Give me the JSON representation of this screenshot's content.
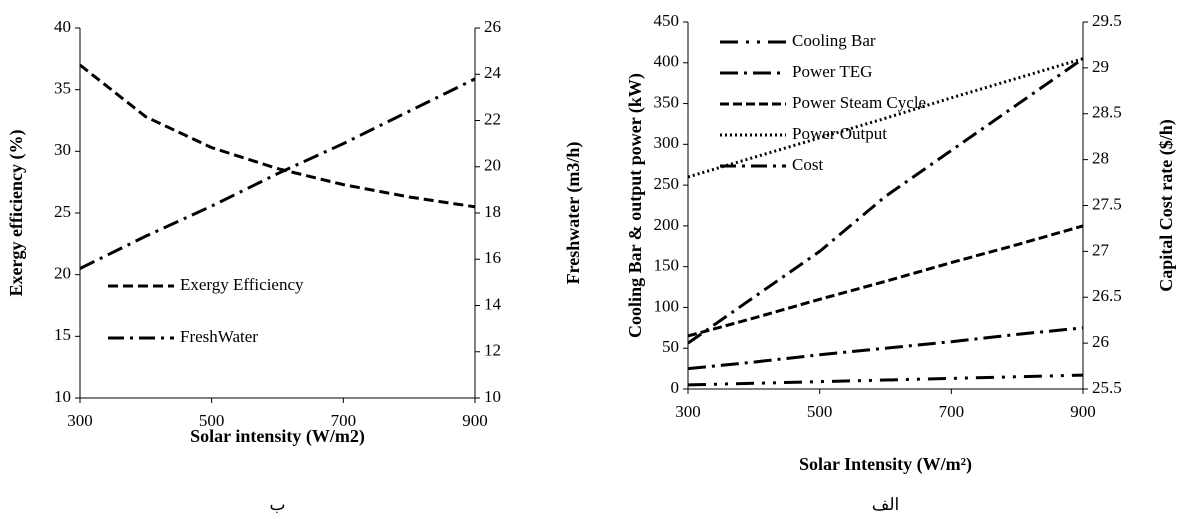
{
  "chart_data": [
    {
      "type": "line",
      "x_label": "Solar intensity (W/m2)",
      "y_label": "Exergy efficiency (%)",
      "y2_label": "Freshwater (m3/h)",
      "caption": "ب",
      "x": [
        300,
        400,
        500,
        600,
        700,
        800,
        900
      ],
      "series": [
        {
          "name": "Exergy Efficiency",
          "color": "#000000",
          "values": [
            37,
            32.8,
            30.3,
            28.6,
            27.3,
            26.3,
            25.5
          ]
        },
        {
          "name": "FreshWater",
          "color": "#000000",
          "axis": "y2",
          "values": [
            15.6,
            17.0,
            18.3,
            19.7,
            21.0,
            22.4,
            23.8
          ]
        }
      ],
      "xlim": [
        300,
        900
      ],
      "xticks": [
        300,
        500,
        700,
        900
      ],
      "ylim": [
        10,
        40
      ],
      "yticks": [
        10,
        15,
        20,
        25,
        30,
        35,
        40
      ],
      "y2lim": [
        10,
        26
      ],
      "y2ticks": [
        10,
        12,
        14,
        16,
        18,
        20,
        22,
        24,
        26
      ],
      "legend": "lower left"
    },
    {
      "type": "line",
      "x_label": "Solar Intensity (W/m²)",
      "y_label": "Cooling Bar & output power (kW)",
      "y2_label": "Capital Cost rate ($/h)",
      "caption": "الف",
      "x": [
        300,
        400,
        500,
        600,
        700,
        800,
        900
      ],
      "series": [
        {
          "name": "Cooling Bar",
          "color": "#000000",
          "values": [
            5,
            7,
            9,
            11,
            13,
            15,
            17
          ]
        },
        {
          "name": "Power TEG",
          "color": "#000000",
          "values": [
            25,
            33,
            42,
            50,
            58,
            67,
            75
          ]
        },
        {
          "name": "Power  Steam Cycle",
          "color": "#000000",
          "values": [
            65,
            87,
            110,
            132,
            155,
            177,
            200
          ]
        },
        {
          "name": "Power Output",
          "color": "#000000",
          "values": [
            260,
            284,
            308,
            332,
            357,
            381,
            405
          ]
        },
        {
          "name": "Cost",
          "color": "#000000",
          "axis": "y2",
          "values": [
            26.0,
            26.5,
            27.0,
            27.6,
            28.1,
            28.6,
            29.1
          ]
        }
      ],
      "xlim": [
        300,
        900
      ],
      "xticks": [
        300,
        500,
        700,
        900
      ],
      "ylim": [
        0,
        450
      ],
      "yticks": [
        0,
        50,
        100,
        150,
        200,
        250,
        300,
        350,
        400,
        450
      ],
      "y2lim": [
        25.5,
        29.5
      ],
      "y2ticks": [
        25.5,
        26,
        26.5,
        27,
        27.5,
        28,
        28.5,
        29,
        29.5
      ],
      "legend": "upper left"
    }
  ]
}
